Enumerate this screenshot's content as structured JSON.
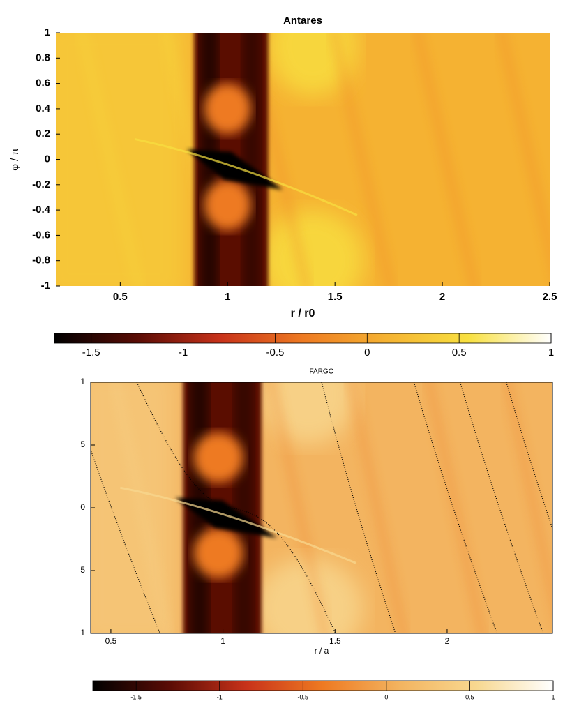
{
  "chart_data": [
    {
      "type": "heatmap",
      "title": "Antares",
      "xlabel": "r / r0",
      "ylabel": "φ / π",
      "xlim": [
        0.2,
        2.5
      ],
      "xticks": [
        0.5,
        1,
        1.5,
        2,
        2.5
      ],
      "ylim": [
        -1,
        1
      ],
      "yticks": [
        -1,
        -0.8,
        -0.6,
        -0.4,
        -0.2,
        0,
        0.2,
        0.4,
        0.6,
        0.8,
        1
      ],
      "clim": [
        -1.7,
        1
      ],
      "cticks": [
        -1.5,
        -1,
        -0.5,
        0,
        0.5,
        1
      ],
      "colormap": [
        "#000000",
        "#5a0c05",
        "#c8321a",
        "#ee7a22",
        "#f5b232",
        "#f8e040",
        "#ffffff"
      ]
    },
    {
      "type": "heatmap",
      "title": "FARGO",
      "xlabel": "r / a",
      "xlim": [
        0.41,
        2.47
      ],
      "xticks": [
        0.5,
        1,
        1.5,
        2
      ],
      "ylim": [
        -1,
        1
      ],
      "yticks": [
        {
          "value": -1,
          "label": "1"
        },
        {
          "value": -0.5,
          "label": "5"
        },
        0,
        {
          "value": 0.5,
          "label": "5"
        },
        1
      ],
      "clim": [
        -1.76,
        1
      ],
      "cticks": [
        -1.5,
        -1,
        -0.5,
        0,
        0.5,
        1
      ],
      "colormap": [
        "#000000",
        "#5a0c05",
        "#c8321a",
        "#ee7a22",
        "#f3b460",
        "#f8d890",
        "#ffffff"
      ]
    }
  ]
}
